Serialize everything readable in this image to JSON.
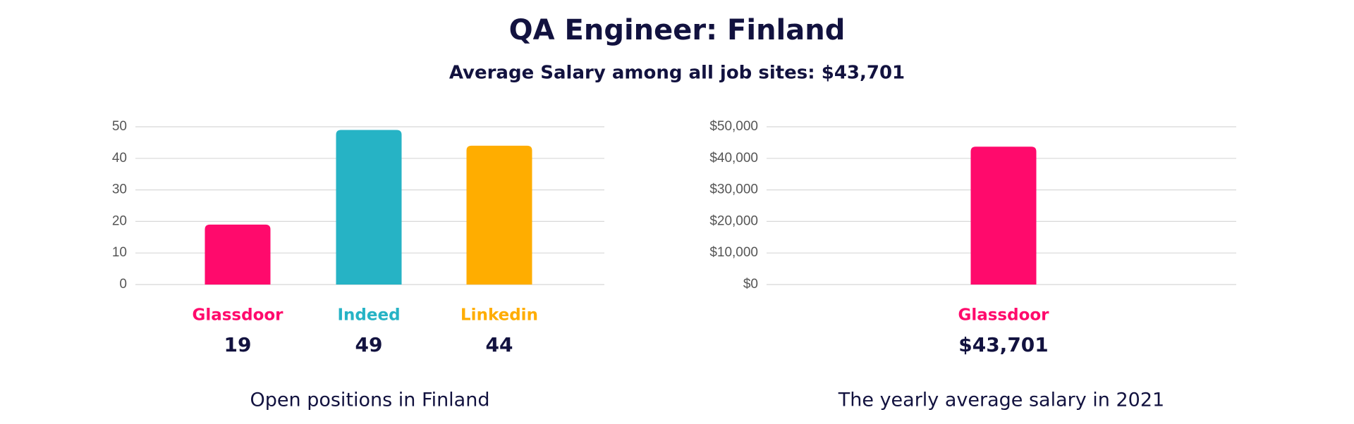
{
  "header": {
    "title": "QA Engineer: Finland",
    "subtitle": "Average Salary among all job sites: $43,701"
  },
  "chart_data": [
    {
      "type": "bar",
      "categories": [
        "Glassdoor",
        "Indeed",
        "Linkedin"
      ],
      "values": [
        19,
        49,
        44
      ],
      "colors": [
        "#ff0a6c",
        "#26b3c5",
        "#ffad00"
      ],
      "ylim": [
        0,
        50
      ],
      "yticks": [
        0,
        10,
        20,
        30,
        40,
        50
      ],
      "grid": true,
      "caption": "Open positions in Finland"
    },
    {
      "type": "bar",
      "categories": [
        "Glassdoor"
      ],
      "values": [
        43701
      ],
      "value_labels": [
        "$43,701"
      ],
      "colors": [
        "#ff0a6c"
      ],
      "ylim": [
        0,
        50000
      ],
      "yticks": [
        {
          "value": 0,
          "label": "$0"
        },
        {
          "value": 10000,
          "label": "$10,000"
        },
        {
          "value": 20000,
          "label": "$20,000"
        },
        {
          "value": 30000,
          "label": "$30,000"
        },
        {
          "value": 40000,
          "label": "$40,000"
        },
        {
          "value": 50000,
          "label": "$50,000"
        }
      ],
      "grid": true,
      "caption": "The yearly average salary in 2021"
    }
  ]
}
